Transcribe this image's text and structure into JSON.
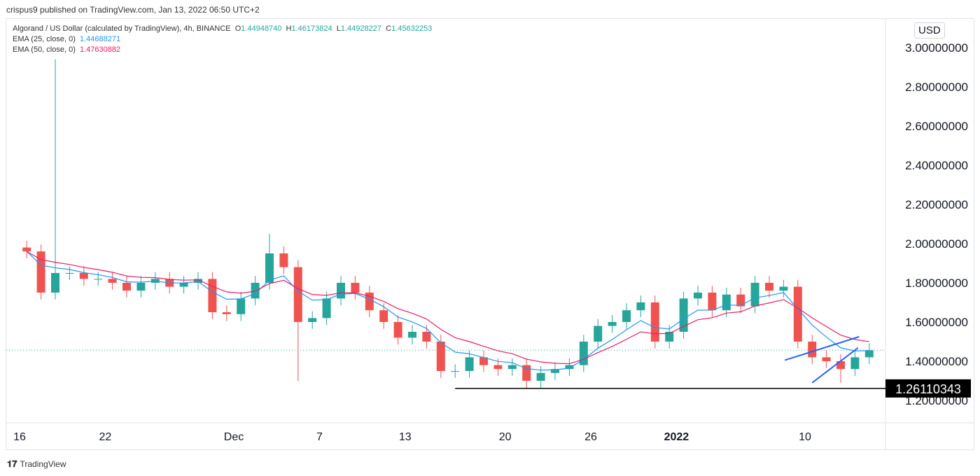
{
  "published": "crispus9 published on TradingView.com, Jan 13, 2022 06:50 UTC+2",
  "legend": {
    "symbol": "Algorand / US Dollar (calculated by TradingView), 4h, BINANCE",
    "o_label": "O",
    "o": "1.44948740",
    "h_label": "H",
    "h": "1.46173824",
    "l_label": "L",
    "l": "1.44928227",
    "c_label": "C",
    "c": "1.45632253",
    "ema25_label": "EMA (25, close, 0)",
    "ema25": "1.44688271",
    "ema50_label": "EMA (50, close, 0)",
    "ema50": "1.47630882"
  },
  "currency": "USD",
  "footer": "TradingView",
  "chart_data": {
    "type": "candlestick",
    "colors": {
      "up": "#26a69a",
      "down": "#ef5350",
      "ema25": "#2196f3",
      "ema50": "#e91e63",
      "trendline": "#2962ff",
      "support": "#000000"
    },
    "yticks": [
      "3.00000000",
      "2.80000000",
      "2.60000000",
      "2.40000000",
      "2.20000000",
      "2.00000000",
      "1.80000000",
      "1.60000000",
      "1.40000000",
      "1.20000000"
    ],
    "ylim": [
      1.13,
      3.09
    ],
    "xticks": [
      {
        "label": "16",
        "date": "2021-11-16"
      },
      {
        "label": "22",
        "date": "2021-11-22"
      },
      {
        "label": "Dec",
        "date": "2021-12-01"
      },
      {
        "label": "7",
        "date": "2021-12-07"
      },
      {
        "label": "13",
        "date": "2021-12-13"
      },
      {
        "label": "20",
        "date": "2021-12-20"
      },
      {
        "label": "26",
        "date": "2021-12-26"
      },
      {
        "label": "2022",
        "date": "2022-01-01"
      },
      {
        "label": "10",
        "date": "2022-01-10"
      }
    ],
    "start": "2021-11-16",
    "closes": [
      1.96,
      1.75,
      1.85,
      1.85,
      1.82,
      1.82,
      1.8,
      1.76,
      1.8,
      1.82,
      1.78,
      1.8,
      1.82,
      1.65,
      1.64,
      1.72,
      1.8,
      1.95,
      1.88,
      1.6,
      1.62,
      1.72,
      1.8,
      1.75,
      1.66,
      1.6,
      1.52,
      1.55,
      1.5,
      1.35,
      1.35,
      1.42,
      1.38,
      1.36,
      1.38,
      1.3,
      1.34,
      1.36,
      1.38,
      1.5,
      1.58,
      1.6,
      1.66,
      1.7,
      1.5,
      1.55,
      1.72,
      1.75,
      1.66,
      1.74,
      1.68,
      1.8,
      1.76,
      1.78,
      1.5,
      1.42,
      1.4,
      1.36,
      1.42,
      1.456
    ],
    "special_highs": {
      "2": 2.94,
      "17": 2.05
    },
    "special_lows": {
      "19": 1.3,
      "35": 1.261,
      "57": 1.29
    },
    "current_price": 1.45632253,
    "support": {
      "price": 1.26110343,
      "label": "1.26110343",
      "from": "2021-12-16T12:00"
    },
    "trendlines": [
      {
        "from": [
          "2022-01-08T14:00",
          1.405
        ],
        "to": [
          "2022-01-13T19:00",
          1.525
        ]
      },
      {
        "from": [
          "2022-01-10T12:00",
          1.29
        ],
        "to": [
          "2022-01-13T17:00",
          1.468
        ]
      }
    ]
  }
}
